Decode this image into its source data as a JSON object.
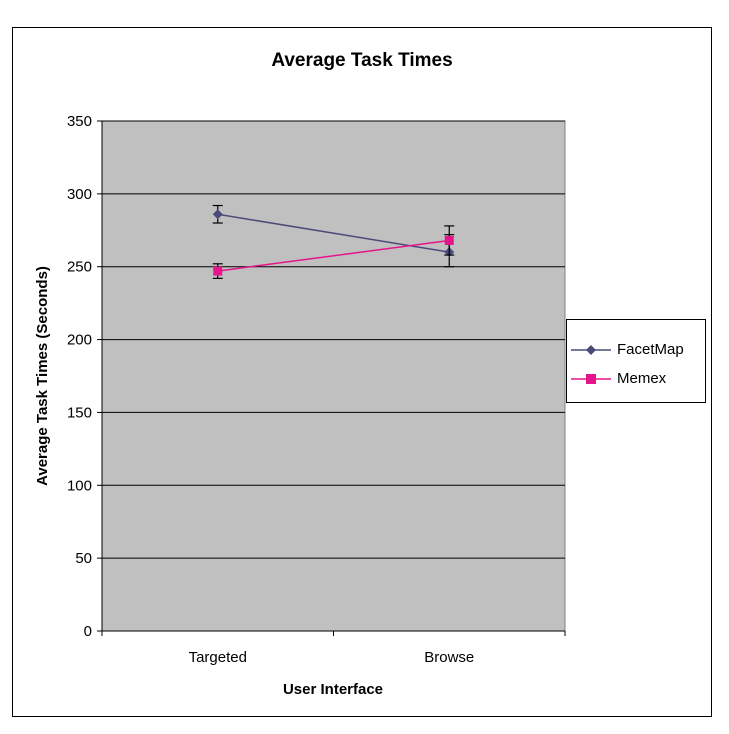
{
  "chart_data": {
    "type": "line",
    "title": "Average Task Times",
    "xlabel": "User Interface",
    "ylabel": "Average Task Times (Seconds)",
    "categories": [
      "Targeted",
      "Browse"
    ],
    "ylim": [
      0,
      350
    ],
    "yticks": [
      0,
      50,
      100,
      150,
      200,
      250,
      300,
      350
    ],
    "grid": true,
    "plot_background": "#c0c0c0",
    "legend_position": "right",
    "series": [
      {
        "name": "FacetMap",
        "values": [
          286,
          260
        ],
        "error_low": [
          280,
          250
        ],
        "error_high": [
          292,
          278
        ],
        "color": "#4b4b7a",
        "marker": "diamond"
      },
      {
        "name": "Memex",
        "values": [
          247,
          268
        ],
        "error_low": [
          242,
          258
        ],
        "error_high": [
          252,
          272
        ],
        "color": "#e6148c",
        "marker": "square"
      }
    ]
  }
}
